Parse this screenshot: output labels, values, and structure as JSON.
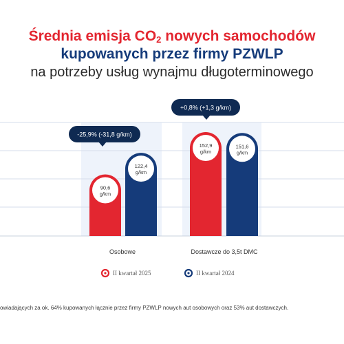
{
  "title": {
    "line1_before": "Średnia emisja CO",
    "line1_sub": "2",
    "line1_after": " nowych samochodów",
    "line2": "kupowanych przez firmy PZWLP",
    "line3": "na potrzeby usług wynajmu długoterminowego"
  },
  "chart_data": {
    "type": "bar",
    "categories": [
      "Osobowe",
      "Dostawcze do 3,5t DMC"
    ],
    "series": [
      {
        "name": "II kwartał 2025",
        "values": [
          90.6,
          152.9
        ],
        "labels": [
          "90,6",
          "152,9"
        ],
        "color": "#e32630"
      },
      {
        "name": "II kwartał 2024",
        "values": [
          122.4,
          151.6
        ],
        "labels": [
          "122,4",
          "151,6"
        ],
        "color": "#153b7a"
      }
    ],
    "unit": "g/km",
    "change_labels": [
      "-25,9% (-31,8 g/km)",
      "+0,8% (+1,3 g/km)"
    ],
    "ylim": [
      0,
      160
    ],
    "legend_position": "bottom",
    "grid": true
  },
  "colors": {
    "red": "#e32630",
    "navy": "#153b7a",
    "callout": "#0f2a52",
    "bg_band": "#eef3fb"
  },
  "footnote": "owiadających za ok. 64% kupowanych łącznie przez firmy PZWLP nowych aut osobowych oraz 53% aut dostawczych."
}
